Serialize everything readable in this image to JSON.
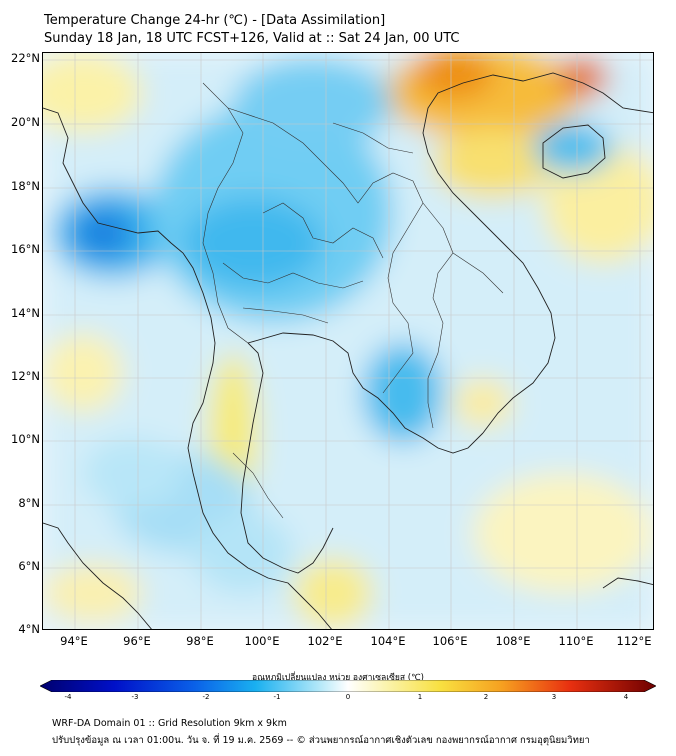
{
  "header": {
    "title_line1": "Temperature Change 24-hr (℃) - [Data Assimilation]",
    "title_line2": "Sunday 18 Jan, 18 UTC FCST+126, Valid at :: Sat 24 Jan, 00 UTC"
  },
  "map": {
    "lat_labels": [
      "22°N",
      "20°N",
      "18°N",
      "16°N",
      "14°N",
      "12°N",
      "10°N",
      "8°N",
      "6°N",
      "4°N"
    ],
    "lon_labels": [
      "94°E",
      "96°E",
      "98°E",
      "100°E",
      "102°E",
      "104°E",
      "106°E",
      "108°E",
      "110°E",
      "112°E"
    ],
    "lat_range": [
      4,
      22.2
    ],
    "lon_range": [
      93,
      112.5
    ],
    "field_variable": "24-hr temperature change",
    "field_units": "°C"
  },
  "colorbar": {
    "title": "อุณหภูมิเปลี่ยนแปลง หน่วย องศาเซลเซียส (℃)",
    "ticks": [
      "-4",
      "-3",
      "-2",
      "-1",
      "0",
      "1",
      "2",
      "3",
      "4"
    ],
    "range": [
      -4,
      4
    ]
  },
  "footer": {
    "line1": "WRF-DA Domain 01 :: Grid Resolution 9km x 9km",
    "line2": "ปรับปรุงข้อมูล ณ เวลา 01:00น. วัน จ. ที่ 19 ม.ค. 2569 -- © ส่วนพยากรณ์อากาศเชิงตัวเลข กองพยากรณ์อากาศ กรมอุตุนิยมวิทยา"
  },
  "colors": {
    "cold": "#1ea0e6",
    "warm": "#f0a020",
    "neutral": "#ffffff"
  }
}
